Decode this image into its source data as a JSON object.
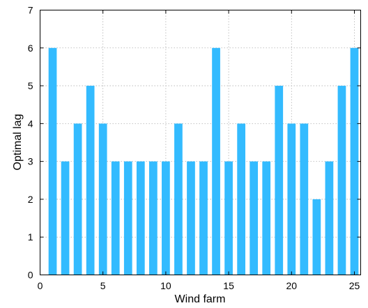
{
  "chart_data": {
    "type": "bar",
    "x": [
      1,
      2,
      3,
      4,
      5,
      6,
      7,
      8,
      9,
      10,
      11,
      12,
      13,
      14,
      15,
      16,
      17,
      18,
      19,
      20,
      21,
      22,
      23,
      24,
      25
    ],
    "values": [
      6,
      3,
      4,
      5,
      4,
      3,
      3,
      3,
      3,
      3,
      4,
      3,
      3,
      6,
      3,
      4,
      3,
      3,
      5,
      4,
      4,
      2,
      3,
      5,
      6
    ],
    "xlabel": "Wind farm",
    "ylabel": "Optimal lag",
    "xlim": [
      0,
      25.5
    ],
    "ylim": [
      0,
      7
    ],
    "xticks": [
      0,
      5,
      10,
      15,
      20,
      25
    ],
    "yticks": [
      0,
      1,
      2,
      3,
      4,
      5,
      6,
      7
    ],
    "grid": true,
    "bar_color": "#33bbff"
  }
}
